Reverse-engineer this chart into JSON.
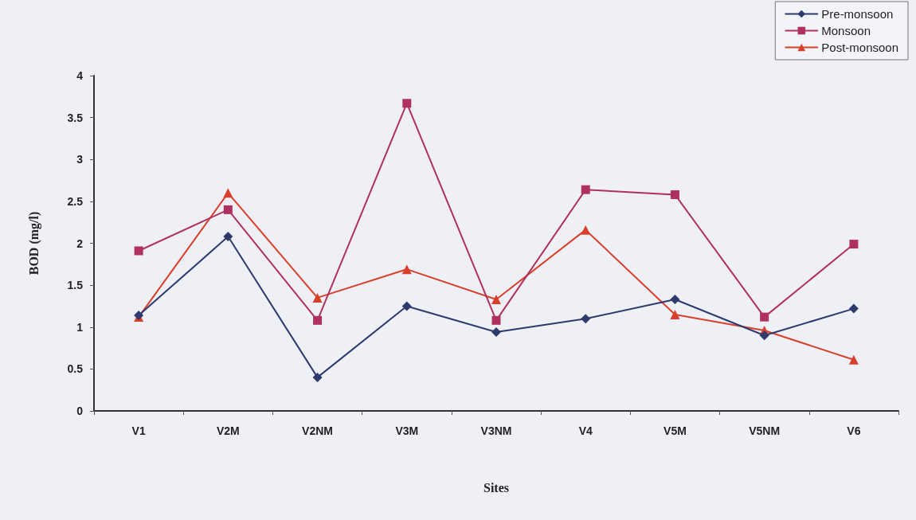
{
  "chart_data": {
    "type": "line",
    "xlabel": "Sites",
    "ylabel": "BOD (mg/l)",
    "categories": [
      "V1",
      "V2M",
      "V2NM",
      "V3M",
      "V3NM",
      "V4",
      "V5M",
      "V5NM",
      "V6"
    ],
    "series": [
      {
        "name": "Pre-monsoon",
        "color": "#2e3a6e",
        "marker": "diamond",
        "values": [
          1.14,
          2.08,
          0.4,
          1.25,
          0.94,
          1.1,
          1.33,
          0.9,
          1.22
        ]
      },
      {
        "name": "Monsoon",
        "color": "#b03060",
        "marker": "square",
        "values": [
          1.91,
          2.4,
          1.08,
          3.67,
          1.08,
          2.64,
          2.58,
          1.12,
          1.99
        ]
      },
      {
        "name": "Post-monsoon",
        "color": "#d8402c",
        "marker": "triangle",
        "values": [
          1.12,
          2.6,
          1.35,
          1.69,
          1.33,
          2.16,
          1.15,
          0.96,
          0.61
        ]
      }
    ],
    "ylim": [
      0,
      4
    ],
    "yticks": [
      0,
      0.5,
      1,
      1.5,
      2,
      2.5,
      3,
      3.5,
      4
    ],
    "grid": false,
    "legend": "top right",
    "line_style": "solid"
  }
}
